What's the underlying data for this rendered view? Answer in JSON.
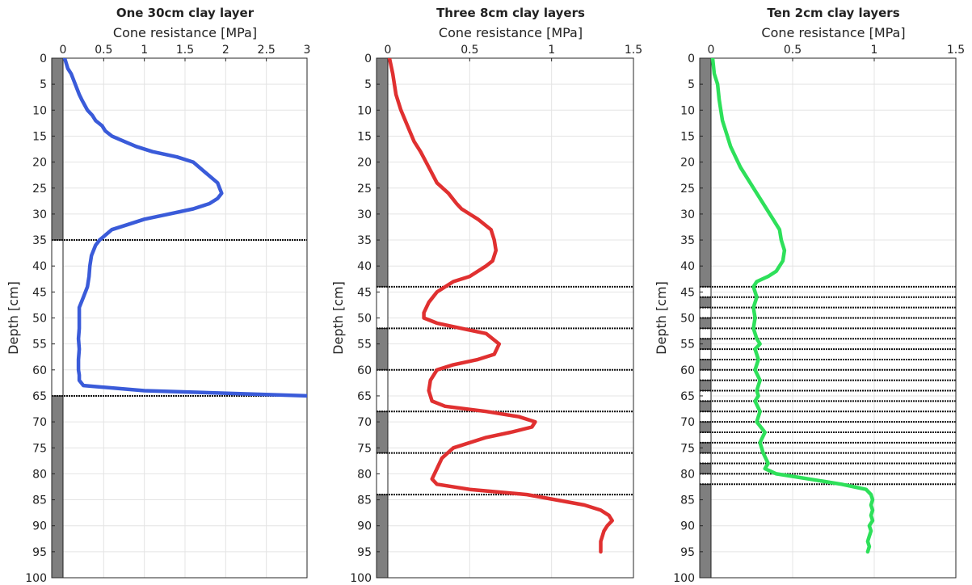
{
  "chart_data": [
    {
      "type": "line",
      "title": "One 30cm clay layer",
      "xlabel": "Cone resistance [MPa]",
      "ylabel": "Depth [cm]",
      "xlim": [
        0,
        3
      ],
      "ylim": [
        0,
        100
      ],
      "x_ticks": [
        "0",
        "0.5",
        "1",
        "1.5",
        "2",
        "2.5",
        "3"
      ],
      "y_ticks": [
        "0",
        "5",
        "10",
        "15",
        "20",
        "25",
        "30",
        "35",
        "40",
        "45",
        "50",
        "55",
        "60",
        "65",
        "70",
        "75",
        "80",
        "85",
        "90",
        "95",
        "100"
      ],
      "x_axis_position": "top",
      "y_axis_reversed": true,
      "grid": true,
      "color": "#3a5bd9",
      "clay_layers": [
        [
          35,
          65
        ]
      ],
      "series": [
        {
          "x": [
            0.02,
            0.06,
            0.1,
            0.15,
            0.2,
            0.23,
            0.3,
            0.36,
            0.4,
            0.48,
            0.52,
            0.6,
            0.75,
            0.9,
            1.1,
            1.4,
            1.6,
            1.75,
            1.9,
            1.95,
            1.9,
            1.8,
            1.6,
            1.3,
            1.0,
            0.8,
            0.6,
            0.45,
            0.4,
            0.35,
            0.33,
            0.32,
            0.3,
            0.25,
            0.2,
            0.2,
            0.2,
            0.19,
            0.2,
            0.19,
            0.19,
            0.2,
            0.2,
            0.25,
            1.0,
            3.0
          ],
          "y": [
            0,
            2,
            3,
            5,
            7,
            8,
            10,
            11,
            12,
            13,
            14,
            15,
            16,
            17,
            18,
            19,
            20,
            22,
            24,
            26,
            27,
            28,
            29,
            30,
            31,
            32,
            33,
            35,
            36,
            38,
            40,
            42,
            44,
            46,
            48,
            50,
            52,
            54,
            56,
            58,
            60,
            61,
            62,
            63,
            64,
            65
          ]
        }
      ]
    },
    {
      "type": "line",
      "title": "Three 8cm clay layers",
      "xlabel": "Cone resistance [MPa]",
      "ylabel": "Depth [cm]",
      "xlim": [
        0,
        1.5
      ],
      "ylim": [
        0,
        100
      ],
      "x_ticks": [
        "0",
        "0.5",
        "1",
        "1.5"
      ],
      "y_ticks": [
        "0",
        "5",
        "10",
        "15",
        "20",
        "25",
        "30",
        "35",
        "40",
        "45",
        "50",
        "55",
        "60",
        "65",
        "70",
        "75",
        "80",
        "85",
        "90",
        "95",
        "100"
      ],
      "x_axis_position": "top",
      "y_axis_reversed": true,
      "grid": true,
      "color": "#e03030",
      "clay_layers": [
        [
          44,
          52
        ],
        [
          60,
          68
        ],
        [
          76,
          84
        ]
      ],
      "series": [
        {
          "x": [
            0.01,
            0.03,
            0.04,
            0.05,
            0.08,
            0.12,
            0.16,
            0.2,
            0.25,
            0.3,
            0.37,
            0.42,
            0.45,
            0.5,
            0.55,
            0.63,
            0.65,
            0.66,
            0.64,
            0.6,
            0.5,
            0.4,
            0.3,
            0.25,
            0.22,
            0.22,
            0.3,
            0.45,
            0.6,
            0.68,
            0.65,
            0.55,
            0.4,
            0.3,
            0.26,
            0.25,
            0.27,
            0.35,
            0.6,
            0.8,
            0.9,
            0.88,
            0.75,
            0.6,
            0.4,
            0.33,
            0.3,
            0.27,
            0.3,
            0.5,
            0.85,
            1.2,
            1.3,
            1.35,
            1.37,
            1.34,
            1.32,
            1.31,
            1.3,
            1.3
          ],
          "y": [
            0,
            3,
            5,
            7,
            10,
            13,
            16,
            18,
            21,
            24,
            26,
            28,
            29,
            30,
            31,
            33,
            35,
            37,
            39,
            40,
            42,
            43,
            45,
            47,
            49,
            50,
            51,
            52,
            53,
            55,
            57,
            58,
            59,
            60,
            62,
            64,
            66,
            67,
            68,
            69,
            70,
            71,
            72,
            73,
            75,
            77,
            79,
            81,
            82,
            83,
            84,
            86,
            87,
            88,
            89,
            90,
            91,
            92,
            93,
            95
          ]
        }
      ]
    },
    {
      "type": "line",
      "title": "Ten 2cm clay layers",
      "xlabel": "Cone resistance [MPa]",
      "ylabel": "Depth [cm]",
      "xlim": [
        0,
        1.5
      ],
      "ylim": [
        0,
        100
      ],
      "x_ticks": [
        "0",
        "0.5",
        "1",
        "1.5"
      ],
      "y_ticks": [
        "0",
        "5",
        "10",
        "15",
        "20",
        "25",
        "30",
        "35",
        "40",
        "45",
        "50",
        "55",
        "60",
        "65",
        "70",
        "75",
        "80",
        "85",
        "90",
        "95",
        "100"
      ],
      "x_axis_position": "top",
      "y_axis_reversed": true,
      "grid": true,
      "color": "#2ee05a",
      "clay_layers": [
        [
          44,
          46
        ],
        [
          48,
          50
        ],
        [
          52,
          54
        ],
        [
          56,
          58
        ],
        [
          60,
          62
        ],
        [
          64,
          66
        ],
        [
          68,
          70
        ],
        [
          72,
          74
        ],
        [
          76,
          78
        ],
        [
          80,
          82
        ]
      ],
      "series": [
        {
          "x": [
            0.01,
            0.02,
            0.04,
            0.05,
            0.06,
            0.07,
            0.1,
            0.12,
            0.15,
            0.18,
            0.24,
            0.3,
            0.38,
            0.42,
            0.43,
            0.45,
            0.44,
            0.4,
            0.35,
            0.28,
            0.26,
            0.28,
            0.26,
            0.27,
            0.26,
            0.28,
            0.3,
            0.27,
            0.29,
            0.27,
            0.3,
            0.28,
            0.29,
            0.27,
            0.3,
            0.28,
            0.33,
            0.3,
            0.32,
            0.35,
            0.33,
            0.4,
            0.6,
            0.8,
            0.95,
            0.98,
            0.99,
            0.98,
            0.99,
            0.98,
            0.99,
            0.97,
            0.98,
            0.97,
            0.96,
            0.97,
            0.96
          ],
          "y": [
            0,
            3,
            5,
            8,
            10,
            12,
            15,
            17,
            19,
            21,
            24,
            27,
            31,
            33,
            35,
            37,
            39,
            41,
            42,
            43,
            44,
            46,
            48,
            50,
            52,
            54,
            55,
            56,
            58,
            60,
            62,
            64,
            65,
            66,
            68,
            70,
            72,
            74,
            76,
            78,
            79,
            80,
            81,
            82,
            83,
            84,
            85,
            86,
            87,
            88,
            89,
            90,
            91,
            92,
            93,
            94,
            95
          ]
        }
      ]
    }
  ]
}
